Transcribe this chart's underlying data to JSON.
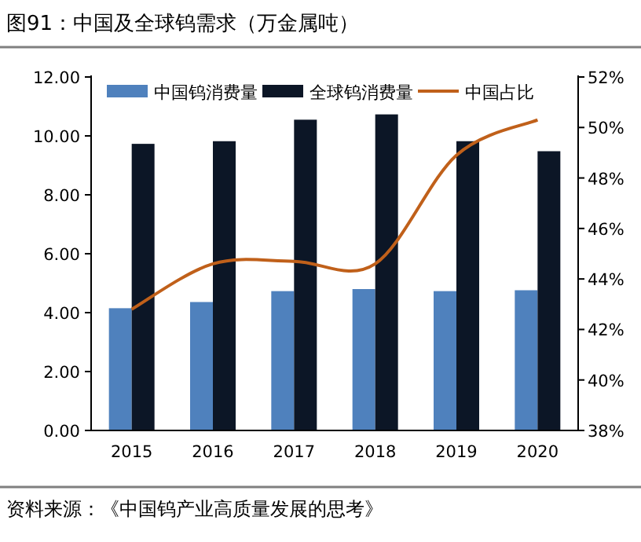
{
  "chart_data": {
    "type": "bar",
    "title": "图91：中国及全球钨需求（万金属吨）",
    "categories": [
      "2015",
      "2016",
      "2017",
      "2018",
      "2019",
      "2020"
    ],
    "series": [
      {
        "name": "中国钨消费量",
        "color": "#4f81bd",
        "values": [
          4.15,
          4.36,
          4.73,
          4.8,
          4.73,
          4.76
        ]
      },
      {
        "name": "全球钨消费量",
        "color": "#0c1626",
        "values": [
          9.73,
          9.82,
          10.55,
          10.73,
          9.82,
          9.48
        ]
      },
      {
        "name": "中国占比",
        "type": "line",
        "axis": "y2",
        "color": "#c0601a",
        "marker": "none",
        "line_style": "solid",
        "values": [
          42.8,
          44.6,
          44.7,
          44.6,
          48.9,
          50.3
        ]
      }
    ],
    "ylim": [
      0,
      12
    ],
    "yticks": [
      {
        "value": 0,
        "label": "0.00"
      },
      {
        "value": 2,
        "label": "2.00"
      },
      {
        "value": 4,
        "label": "4.00"
      },
      {
        "value": 6,
        "label": "6.00"
      },
      {
        "value": 8,
        "label": "8.00"
      },
      {
        "value": 10,
        "label": "10.00"
      },
      {
        "value": 12,
        "label": "12.00"
      }
    ],
    "y2lim": [
      38,
      52
    ],
    "y2ticks": [
      {
        "value": 38,
        "label": "38%"
      },
      {
        "value": 40,
        "label": "40%"
      },
      {
        "value": 42,
        "label": "42%"
      },
      {
        "value": 44,
        "label": "44%"
      },
      {
        "value": 46,
        "label": "46%"
      },
      {
        "value": 48,
        "label": "48%"
      },
      {
        "value": 50,
        "label": "50%"
      },
      {
        "value": 52,
        "label": "52%"
      }
    ],
    "legend": "top",
    "grid": false,
    "annotations": [
      "资料来源：《中国钨产业高质量发展的思考》"
    ]
  }
}
